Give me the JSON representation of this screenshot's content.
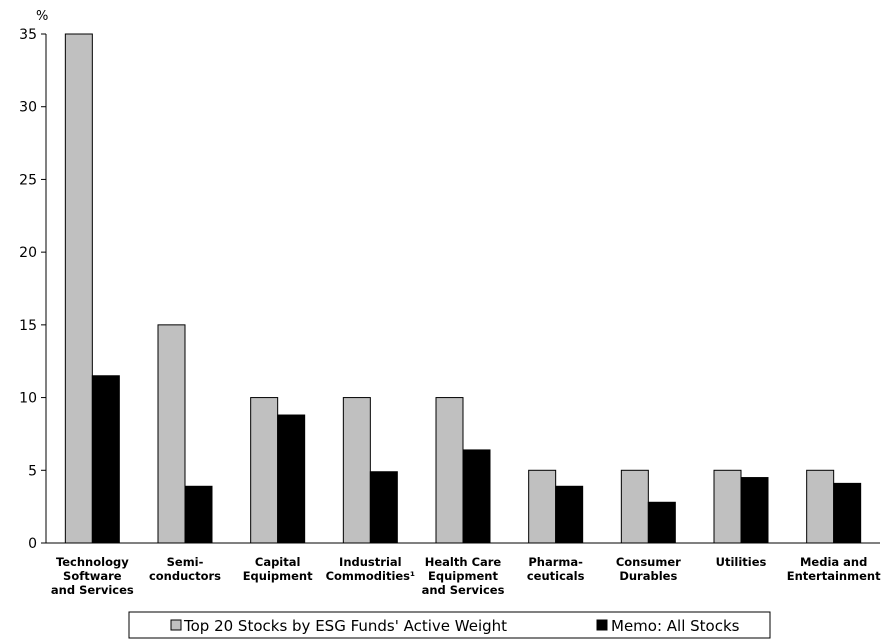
{
  "chart_data": {
    "type": "bar",
    "y_unit_label": "%",
    "ylim": [
      0,
      35
    ],
    "yticks": [
      0,
      5,
      10,
      15,
      20,
      25,
      30,
      35
    ],
    "grid": false,
    "legend_position": "bottom",
    "categories": [
      [
        "Technology",
        "Software",
        "and Services"
      ],
      [
        "Semi-",
        "conductors"
      ],
      [
        "Capital",
        "Equipment"
      ],
      [
        "Industrial",
        "Commodities¹"
      ],
      [
        "Health Care",
        "Equipment",
        "and Services"
      ],
      [
        "Pharma-",
        "ceuticals"
      ],
      [
        "Consumer",
        "Durables"
      ],
      [
        "Utilities"
      ],
      [
        "Media and",
        "Entertainment"
      ]
    ],
    "series": [
      {
        "name": "Top 20 Stocks by ESG Funds' Active Weight",
        "color": "#c0c0c0",
        "values": [
          35,
          15,
          10,
          10,
          10,
          5,
          5,
          5,
          5
        ]
      },
      {
        "name": "Memo: All Stocks",
        "color": "#000000",
        "values": [
          11.5,
          3.9,
          8.8,
          4.9,
          6.4,
          3.9,
          2.8,
          4.5,
          4.1
        ]
      }
    ]
  }
}
